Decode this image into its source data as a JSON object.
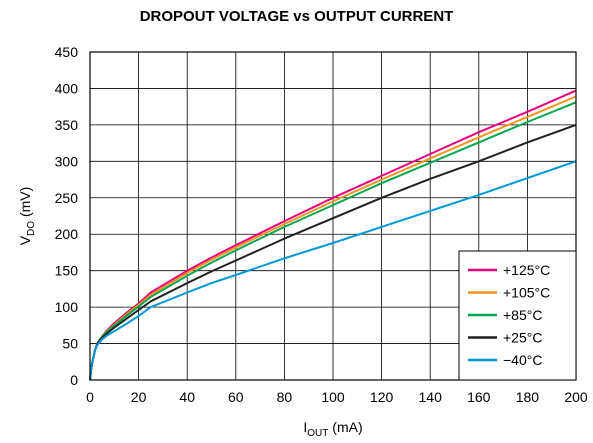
{
  "chart_data": {
    "type": "line",
    "title": "DROPOUT VOLTAGE vs OUTPUT CURRENT",
    "xlabel": {
      "main": "I",
      "sub": "OUT",
      "unit": " (mA)"
    },
    "ylabel": {
      "main": "V",
      "sub": "DO",
      "unit": " (mV)"
    },
    "xlim": [
      0,
      200
    ],
    "ylim": [
      0,
      450
    ],
    "x_ticks": [
      0,
      20,
      40,
      60,
      80,
      100,
      120,
      140,
      160,
      180,
      200
    ],
    "y_ticks": [
      0,
      50,
      100,
      150,
      200,
      250,
      300,
      350,
      400,
      450
    ],
    "grid": true,
    "legend_position": "bottom-right",
    "series": [
      {
        "name": "+125°C",
        "color": "#e6007e",
        "x": [
          0,
          0.5,
          1,
          2,
          3,
          5,
          7,
          10,
          15,
          20,
          25,
          40,
          50,
          60,
          80,
          100,
          120,
          140,
          160,
          180,
          200
        ],
        "y": [
          0,
          15,
          25,
          40,
          50,
          60,
          68,
          78,
          92,
          105,
          120,
          150,
          168,
          185,
          218,
          250,
          280,
          310,
          340,
          368,
          397
        ]
      },
      {
        "name": "+105°C",
        "color": "#f7941d",
        "x": [
          0,
          0.5,
          1,
          2,
          3,
          5,
          7,
          10,
          15,
          20,
          25,
          40,
          50,
          60,
          80,
          100,
          120,
          140,
          160,
          180,
          200
        ],
        "y": [
          0,
          15,
          25,
          40,
          50,
          60,
          67,
          76,
          90,
          103,
          117,
          147,
          165,
          182,
          214,
          245,
          275,
          304,
          333,
          361,
          389
        ]
      },
      {
        "name": "+85°C",
        "color": "#00a651",
        "x": [
          0,
          0.5,
          1,
          2,
          3,
          5,
          7,
          10,
          15,
          20,
          25,
          40,
          50,
          60,
          80,
          100,
          120,
          140,
          160,
          180,
          200
        ],
        "y": [
          0,
          15,
          25,
          40,
          50,
          60,
          66,
          75,
          88,
          101,
          114,
          143,
          161,
          178,
          210,
          240,
          270,
          298,
          326,
          354,
          381
        ]
      },
      {
        "name": "+25°C",
        "color": "#231f20",
        "x": [
          0,
          0.5,
          1,
          2,
          3,
          5,
          7,
          10,
          15,
          20,
          25,
          40,
          50,
          60,
          80,
          100,
          120,
          140,
          160,
          180,
          200
        ],
        "y": [
          0,
          15,
          25,
          40,
          50,
          58,
          64,
          72,
          84,
          96,
          108,
          133,
          149,
          164,
          194,
          222,
          250,
          276,
          300,
          326,
          350
        ]
      },
      {
        "name": "−40°C",
        "color": "#0098d8",
        "x": [
          0,
          0.5,
          1,
          2,
          3,
          5,
          7,
          10,
          15,
          20,
          25,
          40,
          50,
          60,
          80,
          100,
          120,
          140,
          160,
          180,
          200
        ],
        "y": [
          0,
          15,
          25,
          40,
          48,
          56,
          61,
          67,
          77,
          88,
          100,
          120,
          133,
          144,
          167,
          188,
          210,
          232,
          254,
          277,
          300
        ]
      }
    ]
  }
}
